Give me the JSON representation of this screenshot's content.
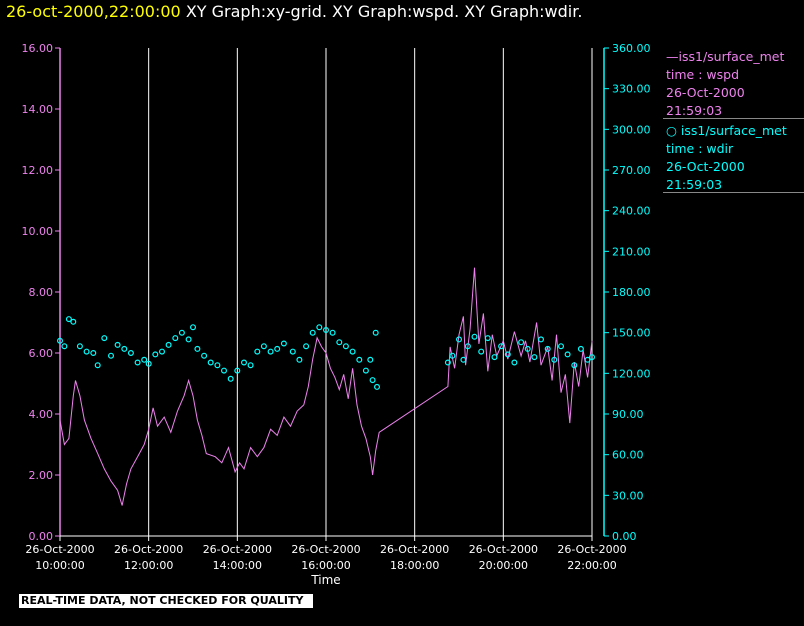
{
  "header": {
    "date": "26-oct-2000,22:00:00",
    "title": "XY Graph:xy-grid.  XY Graph:wspd.  XY Graph:wdir."
  },
  "colors": {
    "wspd": "#ee82ee",
    "wdir": "#00ffff",
    "grid": "#ffffff",
    "background": "#000000"
  },
  "legend": [
    {
      "series": "iss1/surface_met",
      "var": "time : wspd",
      "date": "26-Oct-2000",
      "time": "21:59:03"
    },
    {
      "series": "iss1/surface_met",
      "var": "time : wdir",
      "date": "26-Oct-2000",
      "time": "21:59:03"
    }
  ],
  "disclaimer": "REAL-TIME DATA, NOT CHECKED FOR QUALITY",
  "chart_data": {
    "type": "line",
    "xlabel": "Time",
    "x_tick_labels": [
      [
        "26-Oct-2000",
        "10:00:00"
      ],
      [
        "26-Oct-2000",
        "12:00:00"
      ],
      [
        "26-Oct-2000",
        "14:00:00"
      ],
      [
        "26-Oct-2000",
        "16:00:00"
      ],
      [
        "26-Oct-2000",
        "18:00:00"
      ],
      [
        "26-Oct-2000",
        "20:00:00"
      ],
      [
        "26-Oct-2000",
        "22:00:00"
      ]
    ],
    "x_ticks_hours": [
      10,
      12,
      14,
      16,
      18,
      20,
      22
    ],
    "xlim_hours": [
      10,
      22
    ],
    "y_left": {
      "ticks": [
        "0.00",
        "2.00",
        "4.00",
        "6.00",
        "8.00",
        "10.00",
        "12.00",
        "14.00",
        "16.00"
      ],
      "lim": [
        0,
        16
      ]
    },
    "y_right": {
      "ticks": [
        "0.00",
        "30.00",
        "60.00",
        "90.00",
        "120.00",
        "150.00",
        "180.00",
        "210.00",
        "240.00",
        "270.00",
        "300.00",
        "330.00",
        "360.00"
      ],
      "lim": [
        0,
        360
      ]
    },
    "grid": "vertical",
    "series": [
      {
        "name": "iss1/surface_met time : wspd",
        "axis": "left",
        "style": "line",
        "points": [
          [
            10.0,
            3.8
          ],
          [
            10.1,
            3.0
          ],
          [
            10.2,
            3.2
          ],
          [
            10.3,
            4.6
          ],
          [
            10.35,
            5.1
          ],
          [
            10.45,
            4.6
          ],
          [
            10.55,
            3.8
          ],
          [
            10.7,
            3.2
          ],
          [
            10.85,
            2.7
          ],
          [
            11.0,
            2.2
          ],
          [
            11.15,
            1.8
          ],
          [
            11.3,
            1.5
          ],
          [
            11.4,
            1.0
          ],
          [
            11.5,
            1.7
          ],
          [
            11.6,
            2.2
          ],
          [
            11.75,
            2.6
          ],
          [
            11.9,
            3.0
          ],
          [
            12.0,
            3.5
          ],
          [
            12.1,
            4.2
          ],
          [
            12.2,
            3.6
          ],
          [
            12.35,
            3.9
          ],
          [
            12.5,
            3.4
          ],
          [
            12.65,
            4.1
          ],
          [
            12.8,
            4.6
          ],
          [
            12.9,
            5.1
          ],
          [
            13.0,
            4.6
          ],
          [
            13.1,
            3.8
          ],
          [
            13.2,
            3.3
          ],
          [
            13.3,
            2.7
          ],
          [
            13.5,
            2.6
          ],
          [
            13.65,
            2.4
          ],
          [
            13.8,
            2.9
          ],
          [
            13.95,
            2.1
          ],
          [
            14.05,
            2.4
          ],
          [
            14.15,
            2.2
          ],
          [
            14.3,
            2.9
          ],
          [
            14.45,
            2.6
          ],
          [
            14.6,
            2.9
          ],
          [
            14.75,
            3.5
          ],
          [
            14.9,
            3.3
          ],
          [
            15.05,
            3.9
          ],
          [
            15.2,
            3.6
          ],
          [
            15.35,
            4.1
          ],
          [
            15.5,
            4.3
          ],
          [
            15.6,
            4.9
          ],
          [
            15.7,
            5.8
          ],
          [
            15.8,
            6.5
          ],
          [
            15.9,
            6.2
          ],
          [
            16.0,
            6.0
          ],
          [
            16.1,
            5.5
          ],
          [
            16.2,
            5.2
          ],
          [
            16.3,
            4.8
          ],
          [
            16.4,
            5.3
          ],
          [
            16.5,
            4.5
          ],
          [
            16.6,
            5.5
          ],
          [
            16.7,
            4.3
          ],
          [
            16.8,
            3.6
          ],
          [
            16.9,
            3.2
          ],
          [
            17.0,
            2.6
          ],
          [
            17.05,
            2.0
          ],
          [
            17.12,
            2.8
          ],
          [
            17.2,
            3.4
          ],
          [
            18.75,
            4.9
          ],
          [
            18.8,
            6.2
          ],
          [
            18.9,
            5.5
          ],
          [
            19.0,
            6.6
          ],
          [
            19.1,
            7.2
          ],
          [
            19.15,
            5.6
          ],
          [
            19.25,
            6.8
          ],
          [
            19.35,
            8.8
          ],
          [
            19.45,
            6.3
          ],
          [
            19.55,
            7.3
          ],
          [
            19.65,
            5.4
          ],
          [
            19.75,
            6.6
          ],
          [
            19.85,
            5.9
          ],
          [
            20.0,
            6.4
          ],
          [
            20.1,
            5.8
          ],
          [
            20.25,
            6.7
          ],
          [
            20.4,
            5.9
          ],
          [
            20.5,
            6.4
          ],
          [
            20.6,
            5.7
          ],
          [
            20.75,
            7.0
          ],
          [
            20.85,
            5.6
          ],
          [
            21.0,
            6.2
          ],
          [
            21.1,
            5.1
          ],
          [
            21.2,
            6.6
          ],
          [
            21.3,
            4.7
          ],
          [
            21.4,
            5.3
          ],
          [
            21.5,
            3.7
          ],
          [
            21.6,
            5.7
          ],
          [
            21.7,
            4.9
          ],
          [
            21.8,
            6.1
          ],
          [
            21.9,
            5.2
          ],
          [
            22.0,
            6.4
          ]
        ]
      },
      {
        "name": "iss1/surface_met time : wdir",
        "axis": "right",
        "style": "markers",
        "points": [
          [
            10.0,
            144
          ],
          [
            10.1,
            140
          ],
          [
            10.2,
            160
          ],
          [
            10.3,
            158
          ],
          [
            10.45,
            140
          ],
          [
            10.6,
            136
          ],
          [
            10.75,
            135
          ],
          [
            10.85,
            126
          ],
          [
            11.0,
            146
          ],
          [
            11.15,
            133
          ],
          [
            11.3,
            141
          ],
          [
            11.45,
            138
          ],
          [
            11.6,
            135
          ],
          [
            11.75,
            128
          ],
          [
            11.9,
            130
          ],
          [
            12.0,
            127
          ],
          [
            12.15,
            134
          ],
          [
            12.3,
            136
          ],
          [
            12.45,
            141
          ],
          [
            12.6,
            146
          ],
          [
            12.75,
            150
          ],
          [
            12.9,
            145
          ],
          [
            13.0,
            154
          ],
          [
            13.1,
            138
          ],
          [
            13.25,
            133
          ],
          [
            13.4,
            128
          ],
          [
            13.55,
            126
          ],
          [
            13.7,
            122
          ],
          [
            13.85,
            116
          ],
          [
            14.0,
            122
          ],
          [
            14.15,
            128
          ],
          [
            14.3,
            126
          ],
          [
            14.45,
            136
          ],
          [
            14.6,
            140
          ],
          [
            14.75,
            136
          ],
          [
            14.9,
            138
          ],
          [
            15.05,
            142
          ],
          [
            15.25,
            136
          ],
          [
            15.4,
            130
          ],
          [
            15.55,
            140
          ],
          [
            15.7,
            150
          ],
          [
            15.85,
            154
          ],
          [
            16.0,
            152
          ],
          [
            16.15,
            150
          ],
          [
            16.3,
            143
          ],
          [
            16.45,
            140
          ],
          [
            16.6,
            136
          ],
          [
            16.75,
            130
          ],
          [
            16.9,
            122
          ],
          [
            17.0,
            130
          ],
          [
            17.05,
            115
          ],
          [
            17.12,
            150
          ],
          [
            17.15,
            110
          ],
          [
            18.75,
            128
          ],
          [
            18.85,
            133
          ],
          [
            19.0,
            145
          ],
          [
            19.1,
            130
          ],
          [
            19.2,
            140
          ],
          [
            19.35,
            147
          ],
          [
            19.5,
            136
          ],
          [
            19.65,
            146
          ],
          [
            19.8,
            132
          ],
          [
            19.95,
            140
          ],
          [
            20.1,
            134
          ],
          [
            20.25,
            128
          ],
          [
            20.4,
            143
          ],
          [
            20.55,
            138
          ],
          [
            20.7,
            132
          ],
          [
            20.85,
            145
          ],
          [
            21.0,
            138
          ],
          [
            21.15,
            130
          ],
          [
            21.3,
            140
          ],
          [
            21.45,
            134
          ],
          [
            21.6,
            126
          ],
          [
            21.75,
            138
          ],
          [
            21.9,
            130
          ],
          [
            22.0,
            132
          ]
        ]
      }
    ]
  }
}
